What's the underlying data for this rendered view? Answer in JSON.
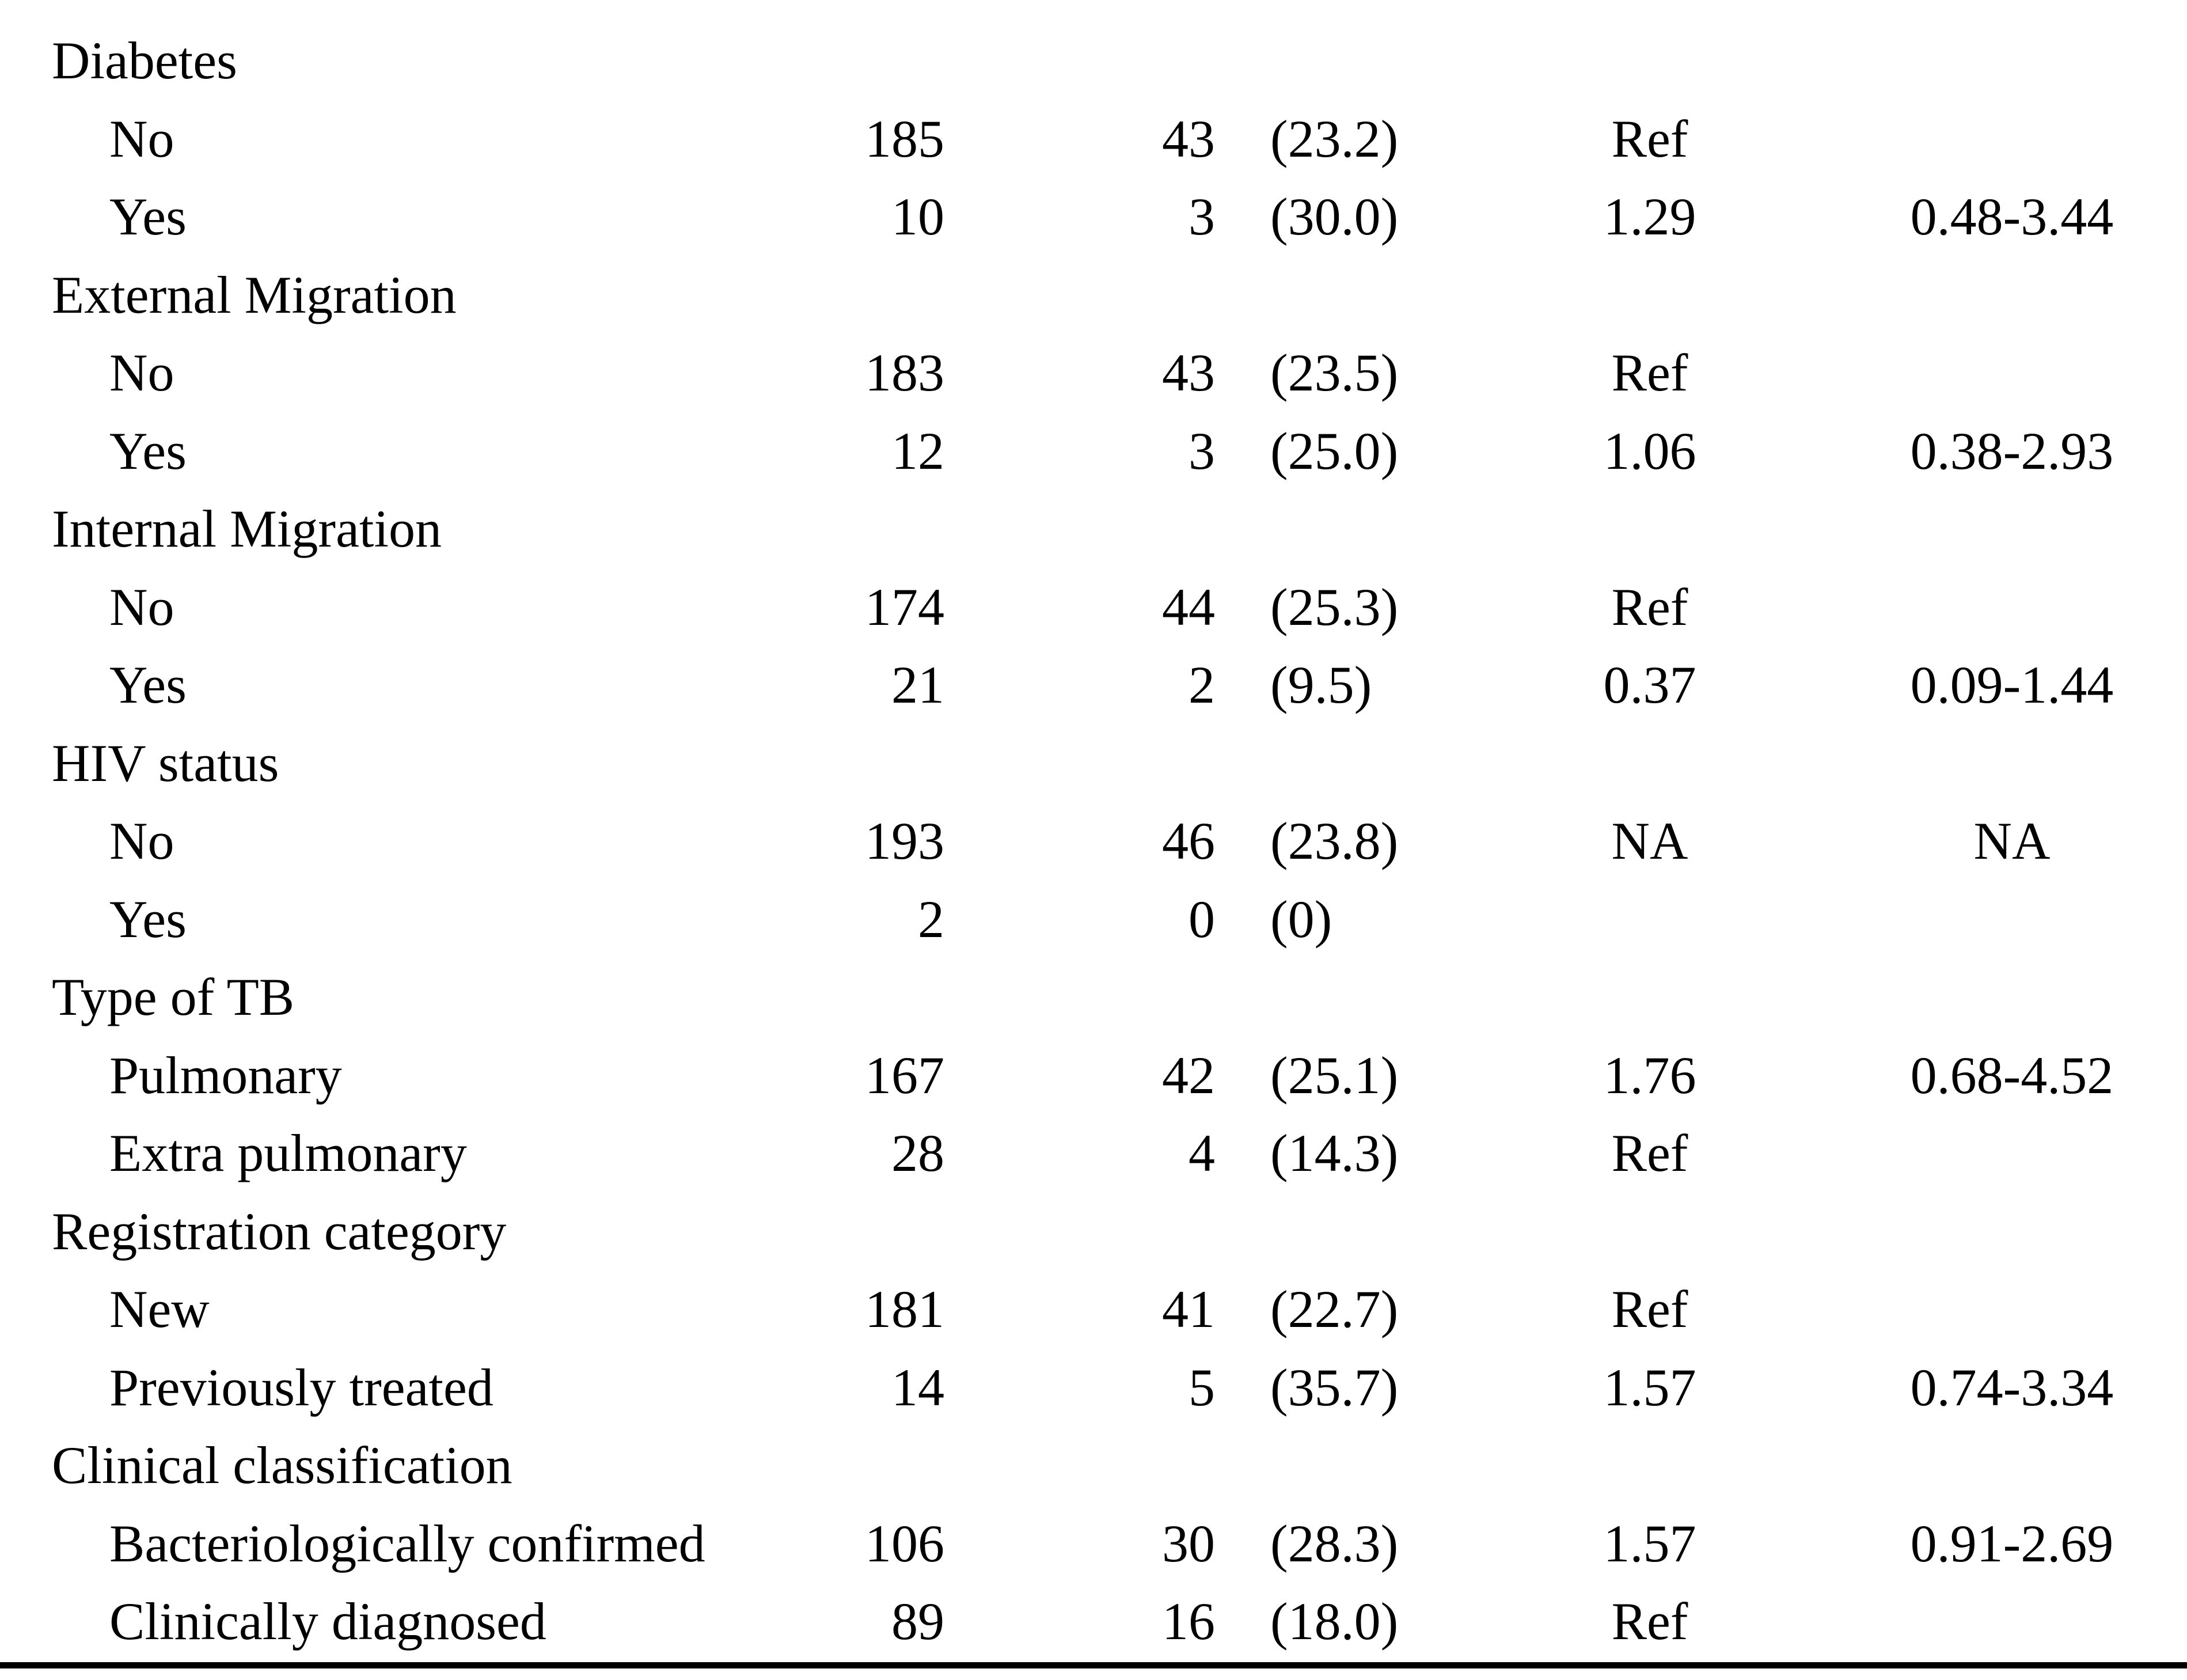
{
  "colors": {
    "text": "#000000",
    "background": "#ffffff",
    "rule": "#000000"
  },
  "table": {
    "rows": [
      {
        "label": "Diabetes",
        "n": "",
        "events": "",
        "pct": "",
        "rr": "",
        "ci": ""
      },
      {
        "label": "No",
        "n": "185",
        "events": "43",
        "pct": "(23.2)",
        "rr": "Ref",
        "ci": ""
      },
      {
        "label": "Yes",
        "n": "10",
        "events": "3",
        "pct": "(30.0)",
        "rr": "1.29",
        "ci": "0.48-3.44"
      },
      {
        "label": "External Migration",
        "n": "",
        "events": "",
        "pct": "",
        "rr": "",
        "ci": ""
      },
      {
        "label": "No",
        "n": "183",
        "events": "43",
        "pct": "(23.5)",
        "rr": "Ref",
        "ci": ""
      },
      {
        "label": "Yes",
        "n": "12",
        "events": "3",
        "pct": "(25.0)",
        "rr": "1.06",
        "ci": "0.38-2.93"
      },
      {
        "label": "Internal Migration",
        "n": "",
        "events": "",
        "pct": "",
        "rr": "",
        "ci": ""
      },
      {
        "label": "No",
        "n": "174",
        "events": "44",
        "pct": "(25.3)",
        "rr": "Ref",
        "ci": ""
      },
      {
        "label": "Yes",
        "n": "21",
        "events": "2",
        "pct": "(9.5)",
        "rr": "0.37",
        "ci": "0.09-1.44"
      },
      {
        "label": "HIV status",
        "n": "",
        "events": "",
        "pct": "",
        "rr": "",
        "ci": ""
      },
      {
        "label": "No",
        "n": "193",
        "events": "46",
        "pct": "(23.8)",
        "rr": "NA",
        "ci": "NA"
      },
      {
        "label": "Yes",
        "n": "2",
        "events": "0",
        "pct": "(0)",
        "rr": "",
        "ci": ""
      },
      {
        "label": "Type of TB",
        "n": "",
        "events": "",
        "pct": "",
        "rr": "",
        "ci": ""
      },
      {
        "label": "Pulmonary",
        "n": "167",
        "events": "42",
        "pct": "(25.1)",
        "rr": "1.76",
        "ci": "0.68-4.52"
      },
      {
        "label": "Extra pulmonary",
        "n": "28",
        "events": "4",
        "pct": "(14.3)",
        "rr": "Ref",
        "ci": ""
      },
      {
        "label": "Registration category",
        "n": "",
        "events": "",
        "pct": "",
        "rr": "",
        "ci": ""
      },
      {
        "label": "New",
        "n": "181",
        "events": "41",
        "pct": "(22.7)",
        "rr": "Ref",
        "ci": ""
      },
      {
        "label": "Previously treated",
        "n": "14",
        "events": "5",
        "pct": "(35.7)",
        "rr": "1.57",
        "ci": "0.74-3.34"
      },
      {
        "label": "Clinical classification",
        "n": "",
        "events": "",
        "pct": "",
        "rr": "",
        "ci": ""
      },
      {
        "label": "Bacteriologically confirmed",
        "n": "106",
        "events": "30",
        "pct": "(28.3)",
        "rr": "1.57",
        "ci": "0.91-2.69"
      },
      {
        "label": "Clinically diagnosed",
        "n": "89",
        "events": "16",
        "pct": "(18.0)",
        "rr": "Ref",
        "ci": ""
      }
    ]
  }
}
